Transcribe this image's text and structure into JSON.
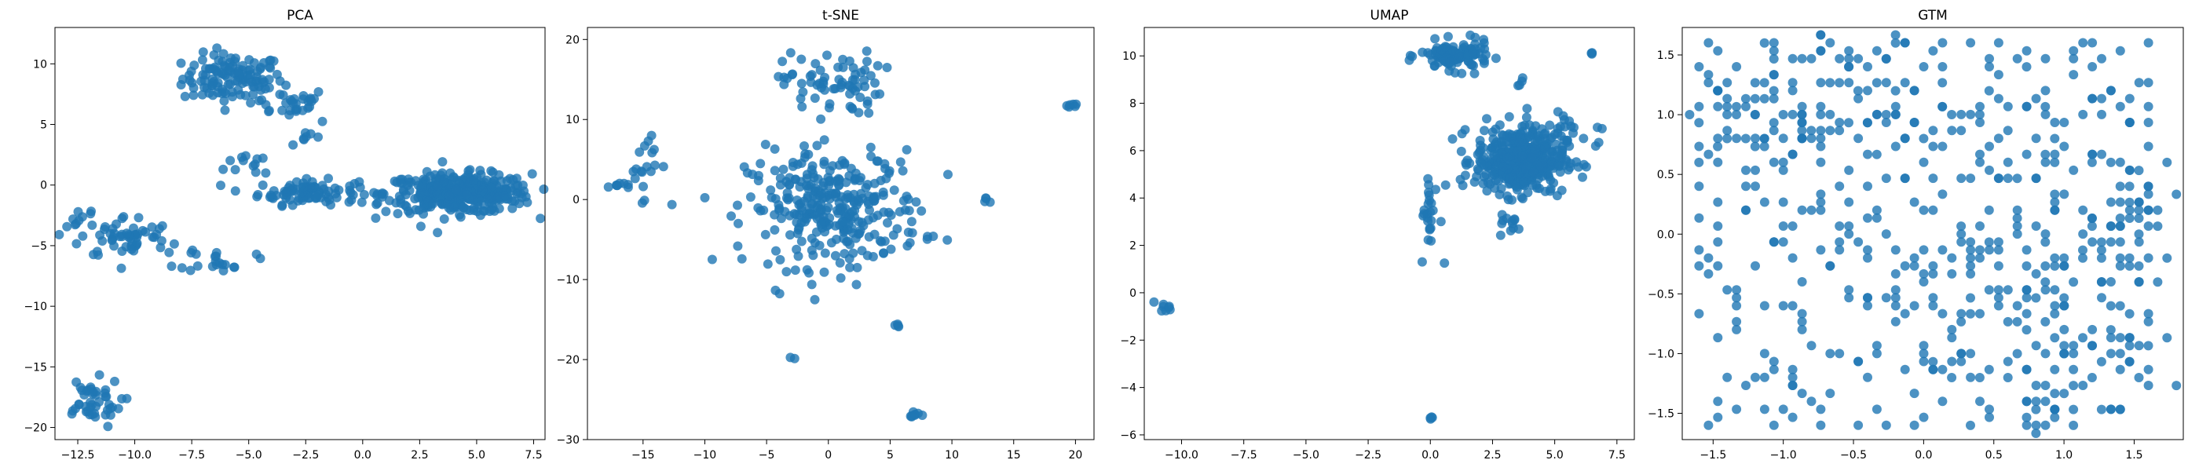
{
  "chart_data": [
    {
      "type": "scatter",
      "title": "PCA",
      "xlabel": "",
      "ylabel": "",
      "xlim": [
        -13.5,
        8.0
      ],
      "ylim": [
        -21.0,
        13.0
      ],
      "xticks": [
        -12.5,
        -10.0,
        -7.5,
        -5.0,
        -2.5,
        0.0,
        2.5,
        5.0,
        7.5
      ],
      "xtick_labels": [
        "−12.5",
        "−10.0",
        "−7.5",
        "−5.0",
        "−2.5",
        "0.0",
        "2.5",
        "5.0",
        "7.5"
      ],
      "yticks": [
        -20,
        -15,
        -10,
        -5,
        0,
        5,
        10
      ],
      "ytick_labels": [
        "−20",
        "−15",
        "−10",
        "−5",
        "0",
        "5",
        "10"
      ],
      "color": "#1f77b4",
      "grid": false,
      "clusters": [
        {
          "center": [
            -5.7,
            8.8
          ],
          "spread": [
            1.1,
            1.0
          ],
          "n": 120
        },
        {
          "center": [
            -3.3,
            6.8
          ],
          "spread": [
            0.9,
            0.6
          ],
          "n": 30
        },
        {
          "center": [
            -4.6,
            1.8
          ],
          "spread": [
            0.7,
            0.6
          ],
          "n": 12
        },
        {
          "center": [
            -2.5,
            4.2
          ],
          "spread": [
            0.5,
            0.7
          ],
          "n": 8
        },
        {
          "center": [
            -2.4,
            -0.6
          ],
          "spread": [
            1.1,
            0.5
          ],
          "n": 90
        },
        {
          "center": [
            4.2,
            -0.7
          ],
          "spread": [
            1.6,
            0.8
          ],
          "n": 380
        },
        {
          "center": [
            -10.4,
            -4.3
          ],
          "spread": [
            1.0,
            0.9
          ],
          "n": 55
        },
        {
          "center": [
            -12.3,
            -2.6
          ],
          "spread": [
            0.4,
            0.5
          ],
          "n": 10
        },
        {
          "center": [
            -6.4,
            -6.1
          ],
          "spread": [
            0.8,
            0.5
          ],
          "n": 22
        },
        {
          "center": [
            -12.0,
            -18.0
          ],
          "spread": [
            0.7,
            1.0
          ],
          "n": 45
        }
      ]
    },
    {
      "type": "scatter",
      "title": "t-SNE",
      "xlabel": "",
      "ylabel": "",
      "xlim": [
        -19.5,
        21.5
      ],
      "ylim": [
        -30.0,
        21.5
      ],
      "xticks": [
        -15,
        -10,
        -5,
        0,
        5,
        10,
        15,
        20
      ],
      "xtick_labels": [
        "−15",
        "−10",
        "−5",
        "0",
        "5",
        "10",
        "15",
        "20"
      ],
      "yticks": [
        -30,
        -20,
        -10,
        0,
        10,
        20
      ],
      "ytick_labels": [
        "−30",
        "−20",
        "−10",
        "0",
        "10",
        "20"
      ],
      "color": "#1f77b4",
      "grid": false,
      "clusters": [
        {
          "center": [
            0.3,
            14.5
          ],
          "spread": [
            2.0,
            2.0
          ],
          "n": 70
        },
        {
          "center": [
            0.5,
            -1.2
          ],
          "spread": [
            3.5,
            3.6
          ],
          "n": 320
        },
        {
          "center": [
            -15.0,
            4.8
          ],
          "spread": [
            0.6,
            2.2
          ],
          "n": 18
        },
        {
          "center": [
            -17.0,
            1.8
          ],
          "spread": [
            0.4,
            0.2
          ],
          "n": 8
        },
        {
          "center": [
            19.6,
            11.7
          ],
          "spread": [
            0.3,
            0.2
          ],
          "n": 6
        },
        {
          "center": [
            7.2,
            -27.0
          ],
          "spread": [
            0.3,
            0.2
          ],
          "n": 8
        },
        {
          "center": [
            12.8,
            0.0
          ],
          "spread": [
            0.2,
            0.2
          ],
          "n": 4
        },
        {
          "center": [
            -3.0,
            -19.8
          ],
          "spread": [
            0.1,
            0.1
          ],
          "n": 2
        },
        {
          "center": [
            5.6,
            -16.0
          ],
          "spread": [
            0.2,
            0.3
          ],
          "n": 4
        }
      ]
    },
    {
      "type": "scatter",
      "title": "UMAP",
      "xlabel": "",
      "ylabel": "",
      "xlim": [
        -11.5,
        8.2
      ],
      "ylim": [
        -6.2,
        11.2
      ],
      "xticks": [
        -10.0,
        -7.5,
        -5.0,
        -2.5,
        0.0,
        2.5,
        5.0,
        7.5
      ],
      "xtick_labels": [
        "−10.0",
        "−7.5",
        "−5.0",
        "−2.5",
        "0.0",
        "2.5",
        "5.0",
        "7.5"
      ],
      "yticks": [
        -6,
        -4,
        -2,
        0,
        2,
        4,
        6,
        8,
        10
      ],
      "ytick_labels": [
        "−6",
        "−4",
        "−2",
        "0",
        "2",
        "4",
        "6",
        "8",
        "10"
      ],
      "color": "#1f77b4",
      "grid": false,
      "clusters": [
        {
          "center": [
            1.0,
            10.0
          ],
          "spread": [
            0.7,
            0.3
          ],
          "n": 110
        },
        {
          "center": [
            3.6,
            5.6
          ],
          "spread": [
            0.9,
            0.7
          ],
          "n": 420
        },
        {
          "center": [
            5.6,
            6.8
          ],
          "spread": [
            0.9,
            0.5
          ],
          "n": 25
        },
        {
          "center": [
            0.0,
            3.2
          ],
          "spread": [
            0.2,
            0.9
          ],
          "n": 25
        },
        {
          "center": [
            3.2,
            2.9
          ],
          "spread": [
            0.2,
            0.3
          ],
          "n": 12
        },
        {
          "center": [
            -10.6,
            -0.6
          ],
          "spread": [
            0.15,
            0.1
          ],
          "n": 8
        },
        {
          "center": [
            0.0,
            -5.25
          ],
          "spread": [
            0.05,
            0.05
          ],
          "n": 4
        },
        {
          "center": [
            6.5,
            10.1
          ],
          "spread": [
            0.05,
            0.05
          ],
          "n": 3
        },
        {
          "center": [
            3.7,
            8.9
          ],
          "spread": [
            0.1,
            0.1
          ],
          "n": 4
        }
      ]
    },
    {
      "type": "scatter",
      "title": "GTM",
      "xlabel": "",
      "ylabel": "",
      "xlim": [
        -1.72,
        1.85
      ],
      "ylim": [
        -1.72,
        1.73
      ],
      "xticks": [
        -1.5,
        -1.0,
        -0.5,
        0.0,
        0.5,
        1.0,
        1.5
      ],
      "xtick_labels": [
        "−1.5",
        "−1.0",
        "−0.5",
        "0.0",
        "0.5",
        "1.0",
        "1.5"
      ],
      "yticks": [
        -1.5,
        -1.0,
        -0.5,
        0.0,
        0.5,
        1.0,
        1.5
      ],
      "ytick_labels": [
        "−1.5",
        "−1.0",
        "−0.5",
        "0.0",
        "0.5",
        "1.0",
        "1.5"
      ],
      "color": "#1f77b4",
      "grid": false,
      "grid_points": {
        "xmin": -1.6,
        "xmax": 1.6,
        "ymin": -1.6,
        "ymax": 1.6,
        "step": 0.0667,
        "n": 420
      },
      "clusters": [
        {
          "center": [
            -1.2,
            0.95
          ],
          "spread": [
            0.2,
            0.2
          ],
          "n": 30
        },
        {
          "center": [
            -0.5,
            1.2
          ],
          "spread": [
            0.35,
            0.3
          ],
          "n": 30
        },
        {
          "center": [
            0.9,
            0.0
          ],
          "spread": [
            0.3,
            0.6
          ],
          "n": 40
        },
        {
          "center": [
            0.9,
            -1.1
          ],
          "spread": [
            0.4,
            0.35
          ],
          "n": 45
        },
        {
          "center": [
            1.45,
            0.0
          ],
          "spread": [
            0.15,
            0.5
          ],
          "n": 30
        }
      ]
    }
  ]
}
